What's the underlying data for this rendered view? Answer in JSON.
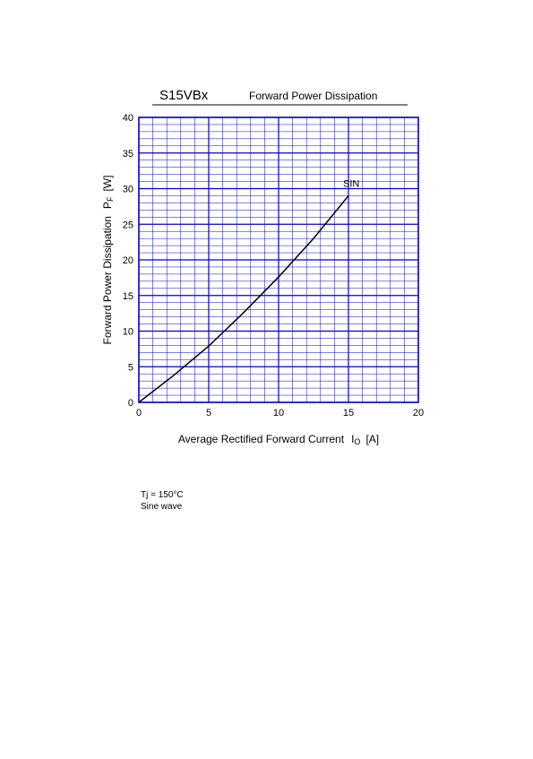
{
  "chart_data": {
    "type": "line",
    "title": "S15VBx",
    "subtitle": "Forward Power Dissipation",
    "x_label": "Average Rectified Forward Current",
    "x_label_symbol": "I",
    "x_label_sub": "O",
    "x_label_unit": "[A]",
    "y_label": "Forward Power Dissipation",
    "y_label_symbol": "P",
    "y_label_sub": "F",
    "y_label_unit": "[W]",
    "x": [
      0,
      2.5,
      5,
      7.5,
      10,
      12.5,
      15
    ],
    "series": [
      {
        "name": "SIN",
        "color": "#000000",
        "values": [
          0,
          3.8,
          7.9,
          12.6,
          17.6,
          23,
          29
        ]
      }
    ],
    "xlim": [
      0,
      20
    ],
    "xticks": [
      0,
      5,
      10,
      15,
      20
    ],
    "ylim": [
      0,
      40
    ],
    "yticks": [
      0,
      5,
      10,
      15,
      20,
      25,
      30,
      35,
      40
    ],
    "grid": true,
    "minor_divisions": 5,
    "grid_color": "#0000cc",
    "notes": [
      "Tj = 150°C",
      "Sine wave"
    ]
  }
}
